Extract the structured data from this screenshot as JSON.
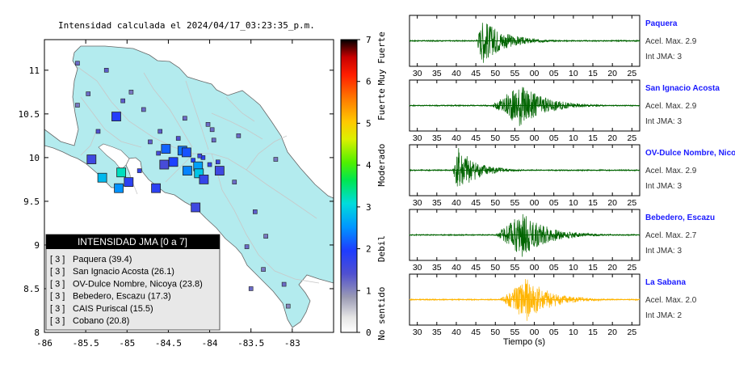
{
  "map": {
    "title": "Intensidad calculada el 2024/04/17_03:23:35_p.m.",
    "x_ticks": [
      -86,
      -85.5,
      -85,
      -84.5,
      -84,
      -83.5,
      -83
    ],
    "y_ticks": [
      8,
      8.5,
      9,
      9.5,
      10,
      10.5,
      11
    ],
    "x_tick_labels": [
      "-86",
      "-85.5",
      "-85",
      "-84.5",
      "-84",
      "-83.5",
      "-83"
    ],
    "y_tick_labels": [
      "8",
      "8.5",
      "9",
      "9.5",
      "10",
      "10.5",
      "11"
    ],
    "xlim": [
      -86,
      -82.5
    ],
    "ylim": [
      8,
      11.35
    ],
    "colors": {
      "land": "#b3ebee",
      "ocean": "#ffffff",
      "roads": "#c8c8c8",
      "outline": "#666666"
    }
  },
  "colorbar": {
    "ticks": [
      "0",
      "1",
      "2",
      "3",
      "4",
      "5",
      "6",
      "7"
    ],
    "categories": [
      "No sentido",
      "Debil",
      "Moderado",
      "Fuerte",
      "Muy Fuerte"
    ],
    "range": [
      0,
      7
    ]
  },
  "legend": {
    "title": "INTENSIDAD JMA [0 a 7]",
    "items": [
      {
        "level": "[ 3 ]",
        "name": "Paquera (39.4)"
      },
      {
        "level": "[ 3 ]",
        "name": "San Ignacio Acosta (26.1)"
      },
      {
        "level": "[ 3 ]",
        "name": "OV-Dulce Nombre, Nicoya (23.8)"
      },
      {
        "level": "[ 3 ]",
        "name": "Bebedero, Escazu (17.3)"
      },
      {
        "level": "[ 3 ]",
        "name": "CAIS Puriscal (15.5)"
      },
      {
        "level": "[ 3 ]",
        "name": "Cobano (20.8)"
      }
    ]
  },
  "chart_data": [
    {
      "type": "scatter",
      "title": "Intensidad calculada el 2024/04/17_03:23:35_p.m.",
      "xlim": [
        -86,
        -82.5
      ],
      "ylim": [
        8,
        11.35
      ],
      "points": [
        {
          "x": -85.1,
          "y": 9.65,
          "intensity": 2.5,
          "size": "large"
        },
        {
          "x": -85.07,
          "y": 9.83,
          "intensity": 3.2,
          "size": "large"
        },
        {
          "x": -85.43,
          "y": 9.98,
          "intensity": 1.6,
          "size": "large"
        },
        {
          "x": -85.3,
          "y": 9.77,
          "intensity": 2.8,
          "size": "large"
        },
        {
          "x": -84.98,
          "y": 9.72,
          "intensity": 1.8,
          "size": "large"
        },
        {
          "x": -84.53,
          "y": 10.1,
          "intensity": 2.2,
          "size": "large"
        },
        {
          "x": -84.33,
          "y": 10.08,
          "intensity": 2.3,
          "size": "large"
        },
        {
          "x": -84.28,
          "y": 10.06,
          "intensity": 2.1,
          "size": "large"
        },
        {
          "x": -84.44,
          "y": 9.95,
          "intensity": 2.0,
          "size": "large"
        },
        {
          "x": -84.27,
          "y": 9.85,
          "intensity": 2.4,
          "size": "large"
        },
        {
          "x": -84.14,
          "y": 9.9,
          "intensity": 2.6,
          "size": "large"
        },
        {
          "x": -84.13,
          "y": 9.82,
          "intensity": 2.9,
          "size": "large"
        },
        {
          "x": -84.07,
          "y": 9.75,
          "intensity": 1.7,
          "size": "large"
        },
        {
          "x": -83.88,
          "y": 9.85,
          "intensity": 1.6,
          "size": "large"
        },
        {
          "x": -84.55,
          "y": 9.92,
          "intensity": 1.5,
          "size": "large"
        },
        {
          "x": -85.13,
          "y": 10.47,
          "intensity": 1.9,
          "size": "large"
        },
        {
          "x": -84.65,
          "y": 9.65,
          "intensity": 1.8,
          "size": "large"
        },
        {
          "x": -84.17,
          "y": 9.43,
          "intensity": 1.6,
          "size": "large"
        },
        {
          "x": -85.6,
          "y": 11.08,
          "intensity": 1.2,
          "size": "small"
        },
        {
          "x": -85.25,
          "y": 11.0,
          "intensity": 1.3,
          "size": "small"
        },
        {
          "x": -85.05,
          "y": 10.65,
          "intensity": 1.3,
          "size": "small"
        },
        {
          "x": -84.8,
          "y": 10.55,
          "intensity": 1.2,
          "size": "small"
        },
        {
          "x": -85.6,
          "y": 10.6,
          "intensity": 1.1,
          "size": "small"
        },
        {
          "x": -85.35,
          "y": 10.3,
          "intensity": 1.4,
          "size": "small"
        },
        {
          "x": -84.6,
          "y": 10.3,
          "intensity": 1.3,
          "size": "small"
        },
        {
          "x": -84.02,
          "y": 10.38,
          "intensity": 1.2,
          "size": "small"
        },
        {
          "x": -83.65,
          "y": 10.25,
          "intensity": 1.2,
          "size": "small"
        },
        {
          "x": -83.2,
          "y": 9.98,
          "intensity": 1.1,
          "size": "small"
        },
        {
          "x": -83.9,
          "y": 9.95,
          "intensity": 1.6,
          "size": "small"
        },
        {
          "x": -83.7,
          "y": 9.72,
          "intensity": 1.2,
          "size": "small"
        },
        {
          "x": -83.45,
          "y": 9.38,
          "intensity": 1.3,
          "size": "small"
        },
        {
          "x": -83.32,
          "y": 9.1,
          "intensity": 1.1,
          "size": "small"
        },
        {
          "x": -83.55,
          "y": 8.98,
          "intensity": 1.2,
          "size": "small"
        },
        {
          "x": -83.35,
          "y": 8.72,
          "intensity": 1.1,
          "size": "small"
        },
        {
          "x": -83.1,
          "y": 8.55,
          "intensity": 1.2,
          "size": "small"
        },
        {
          "x": -83.05,
          "y": 8.3,
          "intensity": 1.0,
          "size": "small"
        },
        {
          "x": -83.5,
          "y": 8.5,
          "intensity": 1.2,
          "size": "small"
        },
        {
          "x": -84.08,
          "y": 10.0,
          "intensity": 1.8,
          "size": "small"
        },
        {
          "x": -84.2,
          "y": 9.97,
          "intensity": 1.9,
          "size": "small"
        },
        {
          "x": -84.0,
          "y": 9.92,
          "intensity": 1.7,
          "size": "small"
        },
        {
          "x": -84.12,
          "y": 10.02,
          "intensity": 1.6,
          "size": "small"
        },
        {
          "x": -84.38,
          "y": 10.22,
          "intensity": 1.4,
          "size": "small"
        },
        {
          "x": -84.62,
          "y": 10.05,
          "intensity": 1.5,
          "size": "small"
        },
        {
          "x": -84.85,
          "y": 9.85,
          "intensity": 1.7,
          "size": "small"
        },
        {
          "x": -84.72,
          "y": 10.18,
          "intensity": 1.3,
          "size": "small"
        },
        {
          "x": -83.95,
          "y": 10.2,
          "intensity": 1.2,
          "size": "small"
        },
        {
          "x": -85.47,
          "y": 10.73,
          "intensity": 1.2,
          "size": "small"
        },
        {
          "x": -84.95,
          "y": 10.75,
          "intensity": 1.1,
          "size": "small"
        },
        {
          "x": -84.3,
          "y": 10.45,
          "intensity": 1.2,
          "size": "small"
        },
        {
          "x": -83.97,
          "y": 10.32,
          "intensity": 1.2,
          "size": "small"
        }
      ]
    },
    {
      "type": "line",
      "station": "Paquera",
      "acel_max": "Acel. Max. 2.9",
      "int_jma": "Int JMA: 3",
      "color": "#006400",
      "x_ticks": [
        "30",
        "35",
        "40",
        "45",
        "50",
        "55",
        "00",
        "05",
        "10",
        "15",
        "20",
        "25"
      ],
      "onset": 45,
      "peak": 46.8,
      "duration": 16,
      "amplitude": 0.95
    },
    {
      "type": "line",
      "station": "San Ignacio Acosta",
      "acel_max": "Acel. Max. 2.9",
      "int_jma": "Int JMA: 3",
      "color": "#006400",
      "x_ticks": [
        "30",
        "35",
        "40",
        "45",
        "50",
        "55",
        "00",
        "05",
        "10",
        "15",
        "20",
        "25"
      ],
      "onset": 49,
      "peak": 56.5,
      "duration": 18,
      "amplitude": 0.9
    },
    {
      "type": "line",
      "station": "OV-Dulce Nombre, Nicoya",
      "acel_max": "Acel. Max. 2.9",
      "int_jma": "Int JMA: 3",
      "color": "#006400",
      "x_ticks": [
        "30",
        "35",
        "40",
        "45",
        "50",
        "55",
        "00",
        "05",
        "10",
        "15",
        "20",
        "25"
      ],
      "onset": 39,
      "peak": 40.5,
      "duration": 14,
      "amplitude": 0.95
    },
    {
      "type": "line",
      "station": "Bebedero, Escazu",
      "acel_max": "Acel. Max. 2.7",
      "int_jma": "Int JMA: 3",
      "color": "#006400",
      "x_ticks": [
        "30",
        "35",
        "40",
        "45",
        "50",
        "55",
        "00",
        "05",
        "10",
        "15",
        "20",
        "25"
      ],
      "onset": 50,
      "peak": 57,
      "duration": 18,
      "amplitude": 0.95
    },
    {
      "type": "line",
      "station": "La Sabana",
      "acel_max": "Acel. Max. 2.0",
      "int_jma": "Int JMA: 2",
      "color": "#ffb400",
      "x_ticks": [
        "30",
        "35",
        "40",
        "45",
        "50",
        "55",
        "00",
        "05",
        "10",
        "15",
        "20",
        "25"
      ],
      "onset": 51,
      "peak": 58,
      "duration": 18,
      "amplitude": 0.9,
      "xlabel": "Tiempo (s)"
    }
  ]
}
